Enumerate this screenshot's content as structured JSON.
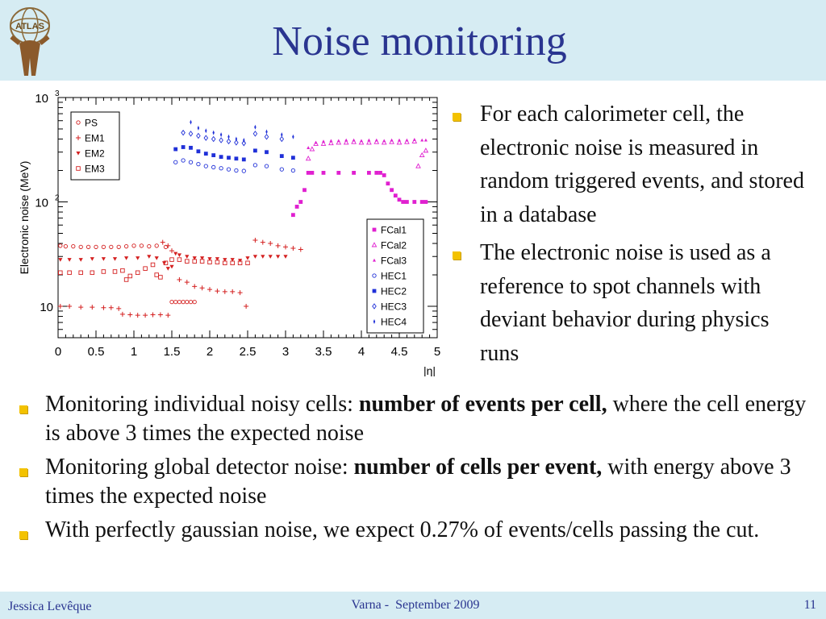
{
  "slide": {
    "title": "Noise monitoring",
    "logo_text": "ATLAS"
  },
  "right_bullets": [
    "For each calorimeter cell, the electronic noise is measured in random triggered events, and stored in a database",
    "The electronic noise is used as a reference to spot channels with deviant behavior during physics runs"
  ],
  "bottom_bullets": [
    {
      "pre": "Monitoring individual noisy cells: ",
      "bold": "number of events per cell,",
      "post": " where the cell energy is above 3 times the expected noise"
    },
    {
      "pre": "Monitoring global detector noise: ",
      "bold": "number of cells per event,",
      "post": " with energy above 3 times the expected noise"
    },
    {
      "pre": "With perfectly gaussian noise, we expect 0.27% of events/cells passing the cut.",
      "bold": "",
      "post": ""
    }
  ],
  "footer": {
    "author": "Jessica Levêque",
    "event": "Varna -  September 2009",
    "page": "11"
  },
  "chart_data": {
    "type": "scatter",
    "xlabel": "|η|",
    "ylabel": "Electronic noise (MeV)",
    "xlim": [
      0,
      5
    ],
    "ylim": [
      5,
      1000
    ],
    "yscale": "log",
    "x_ticks": [
      "0",
      "0.5",
      "1",
      "1.5",
      "2",
      "2.5",
      "3",
      "3.5",
      "4",
      "4.5",
      "5"
    ],
    "y_ticks": [
      {
        "base": "10",
        "exp": ""
      },
      {
        "base": "10",
        "exp": "2"
      },
      {
        "base": "10",
        "exp": "3"
      }
    ],
    "legends": [
      {
        "position": "top-left",
        "entries": [
          "PS",
          "EM1",
          "EM2",
          "EM3"
        ]
      },
      {
        "position": "bottom-right",
        "entries": [
          "FCal1",
          "FCal2",
          "FCal3",
          "HEC1",
          "HEC2",
          "HEC3",
          "HEC4"
        ]
      }
    ],
    "series": [
      {
        "name": "PS",
        "color": "#d42020",
        "marker": "circle-open",
        "x": [
          0.03,
          0.1,
          0.2,
          0.3,
          0.4,
          0.5,
          0.6,
          0.7,
          0.8,
          0.9,
          1.0,
          1.1,
          1.2,
          1.3,
          1.42,
          1.5,
          1.55,
          1.6,
          1.65,
          1.7,
          1.75,
          1.8
        ],
        "y": [
          38,
          37.5,
          37.5,
          37,
          37,
          37,
          37,
          37,
          37,
          37.5,
          38,
          38,
          37.5,
          38,
          37,
          11,
          11,
          11,
          11,
          11,
          11,
          11
        ]
      },
      {
        "name": "EM1",
        "color": "#d42020",
        "marker": "plus",
        "x": [
          0.03,
          0.15,
          0.3,
          0.45,
          0.6,
          0.7,
          0.8,
          0.85,
          0.95,
          1.05,
          1.15,
          1.25,
          1.35,
          1.45,
          1.38,
          1.45,
          1.5,
          1.6,
          1.7,
          1.8,
          1.9,
          2.0,
          2.1,
          2.2,
          2.3,
          2.4,
          2.48,
          2.6,
          2.7,
          2.8,
          2.9,
          3.0,
          3.1,
          3.2
        ],
        "y": [
          10,
          10,
          9.8,
          9.8,
          9.7,
          9.7,
          9.5,
          8.4,
          8.3,
          8.2,
          8.2,
          8.3,
          8.3,
          8.2,
          41,
          38,
          34,
          18,
          17,
          15.5,
          15,
          14.5,
          14,
          13.8,
          13.8,
          13.5,
          10,
          43,
          41,
          40,
          38,
          37,
          36,
          35
        ]
      },
      {
        "name": "EM2",
        "color": "#d42020",
        "marker": "triangle-down",
        "x": [
          0.03,
          0.15,
          0.3,
          0.45,
          0.6,
          0.75,
          0.9,
          1.05,
          1.2,
          1.3,
          1.4,
          1.45,
          1.5,
          1.55,
          1.6,
          1.7,
          1.8,
          1.9,
          2.0,
          2.1,
          2.2,
          2.3,
          2.4,
          2.5,
          2.6,
          2.7,
          2.8,
          2.9,
          3.0
        ],
        "y": [
          28,
          28,
          28,
          28.5,
          28.5,
          28.5,
          29,
          29,
          30,
          29,
          26,
          23,
          24,
          32,
          31,
          30,
          29,
          29,
          28.5,
          28.5,
          28,
          28,
          27.5,
          29,
          30,
          30,
          30,
          30,
          30
        ]
      },
      {
        "name": "EM3",
        "color": "#d42020",
        "marker": "square-open",
        "x": [
          0.03,
          0.15,
          0.3,
          0.45,
          0.6,
          0.75,
          0.85,
          0.9,
          0.95,
          1.05,
          1.15,
          1.25,
          1.3,
          1.35,
          1.42,
          1.5,
          1.6,
          1.7,
          1.8,
          1.9,
          2.0,
          2.1,
          2.2,
          2.3,
          2.4,
          2.5
        ],
        "y": [
          21,
          21,
          21,
          21,
          21.5,
          21.5,
          22,
          18,
          19.5,
          21,
          23,
          25,
          20,
          19,
          26,
          28,
          28,
          27,
          27,
          27,
          26.5,
          26.5,
          26,
          26,
          26,
          26
        ]
      },
      {
        "name": "FCal1",
        "color": "#e020d0",
        "marker": "square",
        "x": [
          3.1,
          3.15,
          3.2,
          3.25,
          3.3,
          3.35,
          3.5,
          3.7,
          3.9,
          4.1,
          4.2,
          4.25,
          4.3,
          4.35,
          4.4,
          4.45,
          4.5,
          4.55,
          4.6,
          4.7,
          4.8,
          4.85
        ],
        "y": [
          75,
          90,
          100,
          130,
          190,
          190,
          190,
          190,
          190,
          190,
          190,
          190,
          180,
          150,
          130,
          115,
          105,
          100,
          100,
          100,
          100,
          100
        ]
      },
      {
        "name": "FCal2",
        "color": "#e020d0",
        "marker": "triangle-open",
        "x": [
          3.3,
          3.35,
          3.4,
          3.5,
          3.6,
          3.7,
          3.8,
          3.9,
          4.0,
          4.1,
          4.2,
          4.3,
          4.4,
          4.5,
          4.6,
          4.7,
          4.75,
          4.8,
          4.85
        ],
        "y": [
          260,
          320,
          360,
          360,
          365,
          370,
          370,
          375,
          370,
          370,
          375,
          370,
          375,
          370,
          375,
          380,
          220,
          280,
          310
        ]
      },
      {
        "name": "FCal3",
        "color": "#e020d0",
        "marker": "triangle",
        "x": [
          3.3,
          3.4,
          3.5,
          3.6,
          3.7,
          3.8,
          3.9,
          4.0,
          4.1,
          4.2,
          4.3,
          4.4,
          4.5,
          4.6,
          4.7,
          4.8,
          4.85
        ],
        "y": [
          330,
          370,
          380,
          385,
          385,
          390,
          390,
          385,
          390,
          390,
          385,
          390,
          390,
          390,
          395,
          390,
          390
        ]
      },
      {
        "name": "HEC1",
        "color": "#2030d8",
        "marker": "circle-open",
        "x": [
          1.55,
          1.65,
          1.75,
          1.85,
          1.95,
          2.05,
          2.15,
          2.25,
          2.35,
          2.45,
          2.6,
          2.75,
          2.95,
          3.1
        ],
        "y": [
          240,
          250,
          240,
          230,
          220,
          215,
          210,
          205,
          200,
          198,
          225,
          220,
          205,
          200
        ]
      },
      {
        "name": "HEC2",
        "color": "#2030d8",
        "marker": "square",
        "x": [
          1.55,
          1.65,
          1.75,
          1.85,
          1.95,
          2.05,
          2.15,
          2.25,
          2.35,
          2.45,
          2.6,
          2.75,
          2.95,
          3.1
        ],
        "y": [
          320,
          335,
          330,
          305,
          290,
          280,
          270,
          265,
          260,
          255,
          310,
          300,
          275,
          265
        ]
      },
      {
        "name": "HEC3",
        "color": "#2030d8",
        "marker": "diamond-open",
        "x": [
          1.65,
          1.75,
          1.85,
          1.95,
          2.05,
          2.15,
          2.25,
          2.35,
          2.45,
          2.6,
          2.75,
          2.95
        ],
        "y": [
          460,
          450,
          430,
          410,
          400,
          390,
          380,
          370,
          365,
          450,
          420,
          400
        ]
      },
      {
        "name": "HEC4",
        "color": "#2030d8",
        "marker": "star",
        "x": [
          1.75,
          1.85,
          1.95,
          2.05,
          2.15,
          2.25,
          2.35,
          2.45,
          2.6,
          2.75,
          2.95,
          3.1
        ],
        "y": [
          580,
          510,
          480,
          460,
          440,
          420,
          400,
          390,
          520,
          470,
          440,
          420
        ]
      }
    ]
  }
}
